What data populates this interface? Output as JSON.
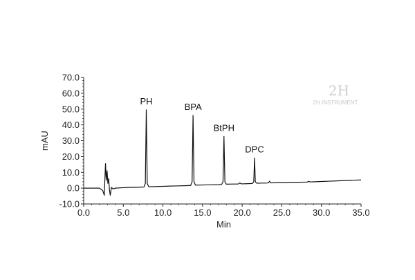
{
  "chart_data": {
    "type": "line",
    "title": "",
    "xlabel": "Min",
    "ylabel": "mAU",
    "xlim": [
      0,
      35
    ],
    "ylim": [
      -10,
      70
    ],
    "x_ticks": [
      "0.0",
      "5.0",
      "10.0",
      "15.0",
      "20.0",
      "25.0",
      "30.0",
      "35.0"
    ],
    "y_ticks": [
      "-10.0",
      "0.0",
      "10.0",
      "20.0",
      "30.0",
      "40.0",
      "50.0",
      "60.0",
      "70.0"
    ],
    "grid": false,
    "series": [
      {
        "x": [
          0,
          2.0,
          2.4,
          2.6,
          2.75,
          2.85,
          2.95,
          3.05,
          3.15,
          3.25,
          3.35,
          3.5,
          3.7,
          4.0,
          5,
          6,
          7,
          7.6,
          7.78,
          7.9,
          8.02,
          8.2,
          9,
          11,
          13,
          13.5,
          13.68,
          13.8,
          13.92,
          14.1,
          15,
          16,
          17.0,
          17.4,
          17.58,
          17.7,
          17.82,
          18.0,
          19,
          19.5,
          19.7,
          19.9,
          20.5,
          21.0,
          21.3,
          21.46,
          21.56,
          21.66,
          21.85,
          22.5,
          23.0,
          23.3,
          23.45,
          23.6,
          24,
          25,
          26,
          27,
          28,
          28.2,
          28.4,
          28.6,
          29,
          30,
          31,
          32,
          33,
          34,
          35
        ],
        "y": [
          0.0,
          0.0,
          -1.5,
          -4.5,
          15.5,
          5.0,
          11.0,
          3.0,
          6.0,
          -1.0,
          -4.5,
          0.5,
          -0.5,
          0.0,
          0.3,
          0.5,
          0.6,
          0.7,
          3.0,
          49.5,
          3.0,
          0.9,
          1.0,
          1.3,
          1.6,
          1.7,
          4.0,
          46.0,
          4.0,
          1.9,
          2.0,
          2.1,
          2.2,
          2.3,
          4.0,
          32.7,
          4.0,
          2.5,
          2.6,
          2.6,
          3.3,
          2.7,
          2.8,
          2.9,
          3.0,
          4.0,
          19.0,
          4.0,
          3.1,
          3.2,
          3.2,
          3.3,
          4.4,
          3.3,
          3.4,
          3.5,
          3.6,
          3.7,
          3.8,
          3.8,
          4.3,
          3.9,
          4.0,
          4.2,
          4.4,
          4.6,
          4.8,
          5.0,
          5.2
        ]
      }
    ],
    "annotations": [
      {
        "text": "PH",
        "x": 7.9,
        "y": 49.5
      },
      {
        "text": "BPA",
        "x": 13.8,
        "y": 46.0
      },
      {
        "text": "BtPH",
        "x": 17.7,
        "y": 32.7
      },
      {
        "text": "DPC",
        "x": 21.56,
        "y": 19.0
      }
    ]
  },
  "watermark": {
    "logo": "2H",
    "text": "2H INSTRUMENT"
  },
  "colors": {
    "trace": "#111111",
    "axis": "#222222",
    "watermark": "#cccccc"
  }
}
